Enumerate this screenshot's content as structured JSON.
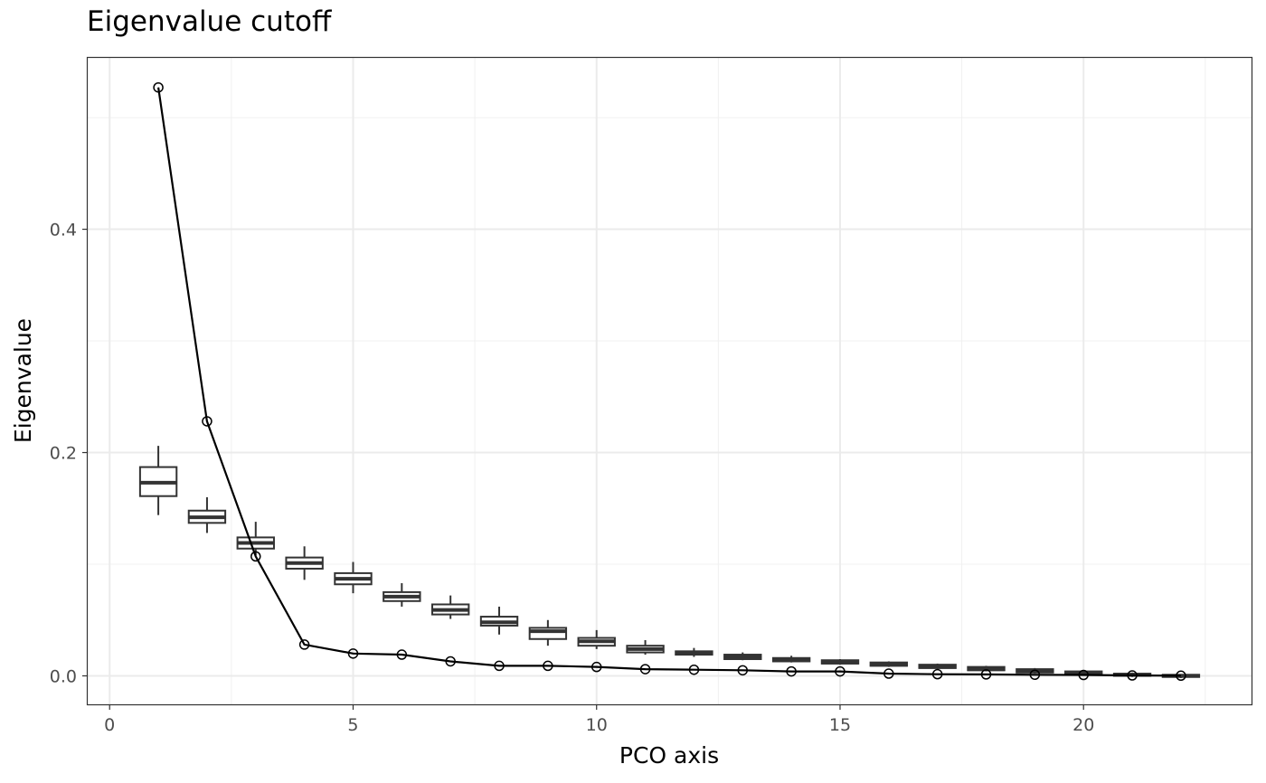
{
  "chart_data": {
    "type": "line",
    "title": "Eigenvalue cutoff",
    "xlabel": "PCO axis",
    "ylabel": "Eigenvalue",
    "xlim": [
      -0.45,
      23.45
    ],
    "ylim": [
      -0.0255,
      0.5535
    ],
    "x_ticks": [
      0,
      5,
      10,
      15,
      20
    ],
    "x_tick_labels": [
      "0",
      "5",
      "10",
      "15",
      "20"
    ],
    "y_ticks": [
      0.0,
      0.2,
      0.4
    ],
    "y_tick_labels": [
      "0.0",
      "0.2",
      "0.4"
    ],
    "grid": true,
    "series": [
      {
        "kind": "line-with-points",
        "color": "#000000",
        "x": [
          1,
          2,
          3,
          4,
          5,
          6,
          7,
          8,
          9,
          10,
          11,
          12,
          13,
          14,
          15,
          16,
          17,
          18,
          19,
          20,
          21,
          22
        ],
        "y": [
          0.527,
          0.228,
          0.107,
          0.028,
          0.02,
          0.019,
          0.013,
          0.009,
          0.009,
          0.008,
          0.006,
          0.0055,
          0.005,
          0.004,
          0.004,
          0.002,
          0.0015,
          0.0013,
          0.001,
          0.0008,
          0.0004,
          0.0002
        ]
      },
      {
        "kind": "boxplot",
        "color": "#333333",
        "boxes": [
          {
            "x": 1,
            "min": 0.144,
            "q1": 0.161,
            "median": 0.173,
            "q3": 0.187,
            "max": 0.206
          },
          {
            "x": 2,
            "min": 0.128,
            "q1": 0.137,
            "median": 0.142,
            "q3": 0.148,
            "max": 0.16
          },
          {
            "x": 3,
            "min": 0.108,
            "q1": 0.114,
            "median": 0.119,
            "q3": 0.124,
            "max": 0.138
          },
          {
            "x": 4,
            "min": 0.086,
            "q1": 0.096,
            "median": 0.101,
            "q3": 0.106,
            "max": 0.116
          },
          {
            "x": 5,
            "min": 0.074,
            "q1": 0.082,
            "median": 0.087,
            "q3": 0.092,
            "max": 0.102
          },
          {
            "x": 6,
            "min": 0.062,
            "q1": 0.067,
            "median": 0.071,
            "q3": 0.075,
            "max": 0.083
          },
          {
            "x": 7,
            "min": 0.051,
            "q1": 0.055,
            "median": 0.059,
            "q3": 0.064,
            "max": 0.072
          },
          {
            "x": 8,
            "min": 0.037,
            "q1": 0.045,
            "median": 0.048,
            "q3": 0.053,
            "max": 0.062
          },
          {
            "x": 9,
            "min": 0.027,
            "q1": 0.033,
            "median": 0.04,
            "q3": 0.043,
            "max": 0.05
          },
          {
            "x": 10,
            "min": 0.024,
            "q1": 0.027,
            "median": 0.031,
            "q3": 0.034,
            "max": 0.041
          },
          {
            "x": 11,
            "min": 0.019,
            "q1": 0.021,
            "median": 0.024,
            "q3": 0.027,
            "max": 0.032
          },
          {
            "x": 12,
            "min": 0.017,
            "q1": 0.019,
            "median": 0.02,
            "q3": 0.022,
            "max": 0.025
          },
          {
            "x": 13,
            "min": 0.014,
            "q1": 0.015,
            "median": 0.017,
            "q3": 0.019,
            "max": 0.021
          },
          {
            "x": 14,
            "min": 0.012,
            "q1": 0.013,
            "median": 0.014,
            "q3": 0.016,
            "max": 0.018
          },
          {
            "x": 15,
            "min": 0.01,
            "q1": 0.011,
            "median": 0.012,
            "q3": 0.014,
            "max": 0.015
          },
          {
            "x": 16,
            "min": 0.008,
            "q1": 0.009,
            "median": 0.01,
            "q3": 0.012,
            "max": 0.013
          },
          {
            "x": 17,
            "min": 0.006,
            "q1": 0.007,
            "median": 0.008,
            "q3": 0.01,
            "max": 0.011
          },
          {
            "x": 18,
            "min": 0.004,
            "q1": 0.005,
            "median": 0.006,
            "q3": 0.008,
            "max": 0.009
          },
          {
            "x": 19,
            "min": 0.002,
            "q1": 0.003,
            "median": 0.004,
            "q3": 0.006,
            "max": 0.007
          },
          {
            "x": 20,
            "min": 0.0,
            "q1": 0.001,
            "median": 0.002,
            "q3": 0.004,
            "max": 0.005
          },
          {
            "x": 21,
            "min": -0.001,
            "q1": 0.0,
            "median": 0.001,
            "q3": 0.002,
            "max": 0.003
          },
          {
            "x": 22,
            "min": -0.002,
            "q1": -0.001,
            "median": 0.0,
            "q3": 0.001,
            "max": 0.001
          }
        ]
      }
    ]
  }
}
